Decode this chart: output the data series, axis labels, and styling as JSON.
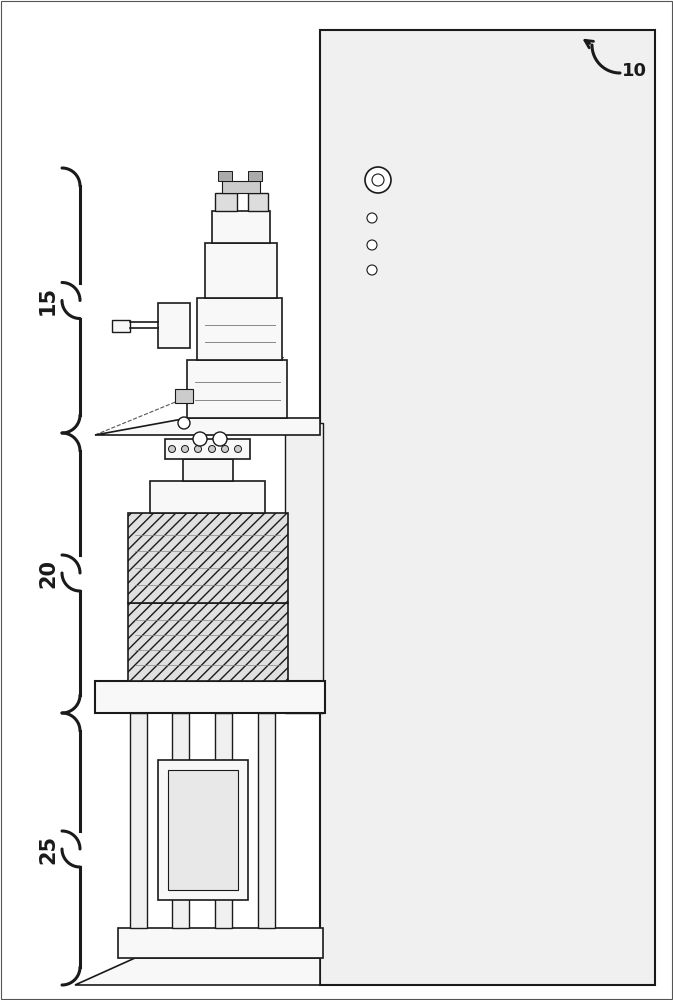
{
  "bg_color": "#ffffff",
  "line_color": "#1a1a1a",
  "label_15": "15",
  "label_20": "20",
  "label_25": "25",
  "label_10": "10",
  "figw": 6.73,
  "figh": 10.0,
  "dpi": 100
}
